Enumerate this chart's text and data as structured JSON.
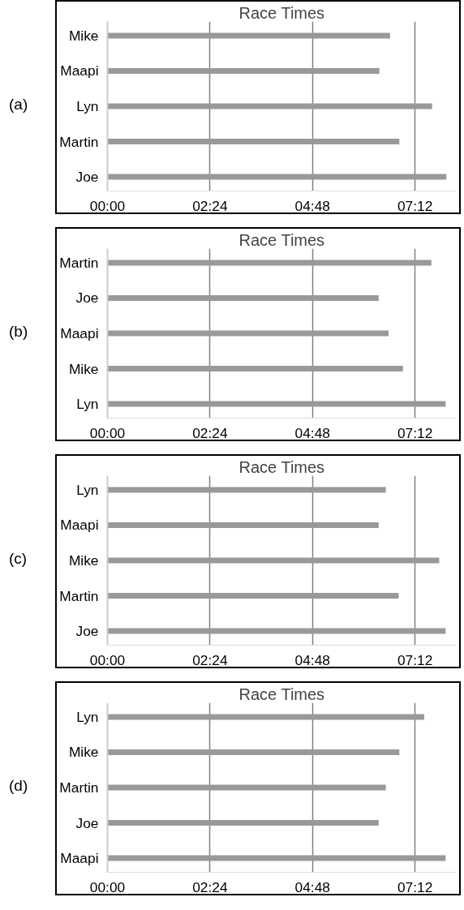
{
  "chart_data": [
    {
      "type": "bar",
      "orientation": "horizontal",
      "title": "Race Times",
      "annotations": [
        "(a)"
      ],
      "categories": [
        "Mike",
        "Maapi",
        "Lyn",
        "Martin",
        "Joe"
      ],
      "values": [
        397,
        382,
        456,
        410,
        476
      ],
      "color": "#999999",
      "xlim": [
        0,
        490
      ],
      "xticks": [
        {
          "value": 0,
          "label": "00:00"
        },
        {
          "value": 144,
          "label": "02:24"
        },
        {
          "value": 288,
          "label": "04:48"
        },
        {
          "value": 432,
          "label": "07:12"
        }
      ],
      "grid": "x"
    },
    {
      "type": "bar",
      "orientation": "horizontal",
      "title": "Race Times",
      "annotations": [
        "(b)"
      ],
      "categories": [
        "Martin",
        "Joe",
        "Maapi",
        "Mike",
        "Lyn"
      ],
      "values": [
        455,
        381,
        395,
        415,
        475
      ],
      "color": "#999999",
      "xlim": [
        0,
        490
      ],
      "xticks": [
        {
          "value": 0,
          "label": "00:00"
        },
        {
          "value": 144,
          "label": "02:24"
        },
        {
          "value": 288,
          "label": "04:48"
        },
        {
          "value": 432,
          "label": "07:12"
        }
      ],
      "grid": "x"
    },
    {
      "type": "bar",
      "orientation": "horizontal",
      "title": "Race Times",
      "annotations": [
        "(c)"
      ],
      "categories": [
        "Lyn",
        "Maapi",
        "Mike",
        "Martin",
        "Joe"
      ],
      "values": [
        391,
        381,
        466,
        409,
        475
      ],
      "color": "#999999",
      "xlim": [
        0,
        490
      ],
      "xticks": [
        {
          "value": 0,
          "label": "00:00"
        },
        {
          "value": 144,
          "label": "02:24"
        },
        {
          "value": 288,
          "label": "04:48"
        },
        {
          "value": 432,
          "label": "07:12"
        }
      ],
      "grid": "x"
    },
    {
      "type": "bar",
      "orientation": "horizontal",
      "title": "Race Times",
      "annotations": [
        "(d)"
      ],
      "categories": [
        "Lyn",
        "Mike",
        "Martin",
        "Joe",
        "Maapi"
      ],
      "values": [
        445,
        410,
        391,
        381,
        475
      ],
      "color": "#999999",
      "xlim": [
        0,
        490
      ],
      "xticks": [
        {
          "value": 0,
          "label": "00:00"
        },
        {
          "value": 144,
          "label": "02:24"
        },
        {
          "value": 288,
          "label": "04:48"
        },
        {
          "value": 432,
          "label": "07:12"
        }
      ],
      "grid": "x"
    }
  ]
}
